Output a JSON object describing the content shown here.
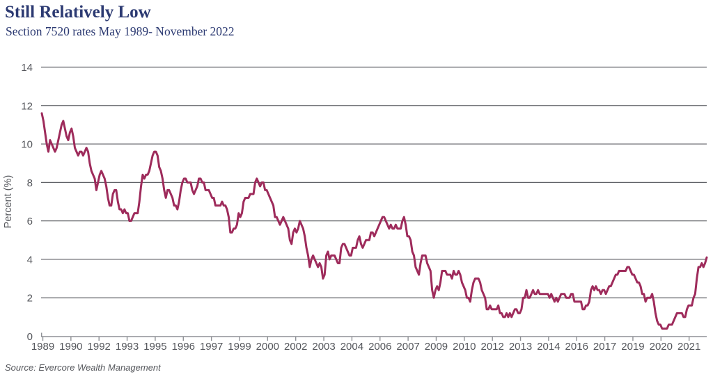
{
  "header": {
    "title": "Still Relatively Low",
    "subtitle": "Section 7520 rates May 1989- November 2022"
  },
  "source_note": "Source: Evercore Wealth Management",
  "colors": {
    "line": "#9e2b5b",
    "title_navy": "#2c3a72",
    "axis_text": "#55575c",
    "gridline": "#606267",
    "axis_line": "#8f9196"
  },
  "chart_data": {
    "type": "line",
    "title": "Still Relatively Low",
    "subtitle": "Section 7520 rates May 1989- November 2022",
    "ylabel": "Percent (%)",
    "ylim": [
      0,
      14
    ],
    "yticks": [
      0,
      2,
      4,
      6,
      8,
      10,
      12,
      14
    ],
    "xtick_labels": [
      "1989",
      "1990",
      "1992",
      "1993",
      "1995",
      "1996",
      "1997",
      "1999",
      "2000",
      "2002",
      "2003",
      "2004",
      "2006",
      "2007",
      "2009",
      "2010",
      "2012",
      "2013",
      "2014",
      "2016",
      "2017",
      "2019",
      "2020",
      "2021"
    ],
    "x_start": "1989-05",
    "x_end": "2022-11",
    "frequency": "monthly",
    "grid": "horizontal",
    "legend_position": "none",
    "series": [
      {
        "name": "Section 7520 rate (%)",
        "values": [
          11.6,
          11.2,
          10.6,
          10.0,
          9.6,
          10.2,
          10.0,
          9.8,
          9.6,
          9.8,
          10.2,
          10.6,
          11.0,
          11.2,
          10.8,
          10.4,
          10.2,
          10.6,
          10.8,
          10.4,
          9.8,
          9.6,
          9.4,
          9.6,
          9.6,
          9.4,
          9.6,
          9.8,
          9.6,
          9.0,
          8.6,
          8.4,
          8.2,
          7.6,
          8.0,
          8.4,
          8.6,
          8.4,
          8.2,
          7.8,
          7.2,
          6.8,
          6.8,
          7.4,
          7.6,
          7.6,
          7.0,
          6.6,
          6.6,
          6.4,
          6.6,
          6.4,
          6.4,
          6.0,
          6.0,
          6.2,
          6.4,
          6.4,
          6.4,
          7.0,
          7.8,
          8.4,
          8.2,
          8.4,
          8.4,
          8.6,
          9.0,
          9.4,
          9.6,
          9.6,
          9.4,
          8.8,
          8.6,
          8.2,
          7.6,
          7.2,
          7.6,
          7.6,
          7.4,
          7.2,
          6.8,
          6.8,
          6.6,
          7.0,
          7.6,
          8.0,
          8.2,
          8.2,
          8.0,
          8.0,
          8.0,
          7.6,
          7.4,
          7.6,
          7.8,
          8.2,
          8.2,
          8.0,
          8.0,
          7.6,
          7.6,
          7.6,
          7.4,
          7.2,
          7.2,
          6.8,
          6.8,
          6.8,
          6.8,
          7.0,
          6.8,
          6.8,
          6.6,
          6.2,
          5.4,
          5.4,
          5.6,
          5.6,
          5.8,
          6.4,
          6.2,
          6.4,
          7.0,
          7.2,
          7.2,
          7.2,
          7.4,
          7.4,
          7.4,
          8.0,
          8.2,
          8.0,
          7.8,
          8.0,
          8.0,
          7.6,
          7.6,
          7.4,
          7.2,
          7.0,
          6.8,
          6.2,
          6.2,
          6.0,
          5.8,
          6.0,
          6.2,
          6.0,
          5.8,
          5.6,
          5.0,
          4.8,
          5.4,
          5.6,
          5.4,
          5.6,
          6.0,
          5.8,
          5.6,
          5.2,
          4.6,
          4.2,
          3.6,
          4.0,
          4.2,
          4.0,
          3.8,
          3.6,
          3.8,
          3.6,
          3.0,
          3.2,
          4.2,
          4.4,
          4.0,
          4.2,
          4.2,
          4.2,
          4.0,
          3.8,
          3.8,
          4.6,
          4.8,
          4.8,
          4.6,
          4.4,
          4.2,
          4.2,
          4.6,
          4.6,
          4.6,
          5.0,
          5.2,
          4.8,
          4.6,
          4.8,
          5.0,
          5.0,
          5.0,
          5.4,
          5.4,
          5.2,
          5.4,
          5.6,
          5.8,
          6.0,
          6.2,
          6.2,
          6.0,
          5.8,
          5.6,
          5.8,
          5.6,
          5.6,
          5.8,
          5.6,
          5.6,
          5.6,
          6.0,
          6.2,
          5.8,
          5.2,
          5.2,
          5.0,
          4.4,
          4.2,
          3.6,
          3.4,
          3.2,
          3.8,
          4.2,
          4.2,
          4.2,
          3.8,
          3.6,
          3.4,
          2.4,
          2.0,
          2.4,
          2.6,
          2.4,
          2.8,
          3.4,
          3.4,
          3.4,
          3.2,
          3.2,
          3.2,
          3.0,
          3.4,
          3.2,
          3.2,
          3.4,
          3.2,
          2.8,
          2.6,
          2.4,
          2.0,
          2.0,
          1.8,
          2.4,
          2.8,
          3.0,
          3.0,
          3.0,
          2.8,
          2.4,
          2.2,
          2.0,
          1.4,
          1.4,
          1.6,
          1.4,
          1.4,
          1.4,
          1.4,
          1.6,
          1.2,
          1.2,
          1.0,
          1.0,
          1.2,
          1.0,
          1.2,
          1.0,
          1.2,
          1.4,
          1.4,
          1.2,
          1.2,
          1.4,
          2.0,
          2.0,
          2.4,
          2.0,
          2.0,
          2.2,
          2.4,
          2.2,
          2.2,
          2.4,
          2.2,
          2.2,
          2.2,
          2.2,
          2.2,
          2.2,
          2.0,
          2.2,
          2.0,
          1.8,
          2.0,
          1.8,
          2.0,
          2.2,
          2.2,
          2.2,
          2.0,
          2.0,
          2.0,
          2.2,
          2.2,
          1.8,
          1.8,
          1.8,
          1.8,
          1.8,
          1.4,
          1.4,
          1.6,
          1.6,
          1.8,
          2.4,
          2.6,
          2.4,
          2.6,
          2.4,
          2.4,
          2.2,
          2.4,
          2.4,
          2.2,
          2.4,
          2.6,
          2.6,
          2.8,
          3.0,
          3.2,
          3.2,
          3.4,
          3.4,
          3.4,
          3.4,
          3.4,
          3.6,
          3.6,
          3.4,
          3.2,
          3.2,
          3.0,
          2.8,
          2.8,
          2.6,
          2.2,
          2.2,
          1.8,
          2.0,
          2.0,
          2.0,
          2.2,
          1.8,
          1.2,
          0.8,
          0.6,
          0.6,
          0.4,
          0.4,
          0.4,
          0.4,
          0.6,
          0.6,
          0.6,
          0.8,
          1.0,
          1.2,
          1.2,
          1.2,
          1.2,
          1.0,
          1.0,
          1.4,
          1.6,
          1.6,
          1.6,
          2.0,
          2.2,
          3.0,
          3.6,
          3.6,
          3.8,
          3.6,
          3.8,
          4.1
        ]
      }
    ]
  }
}
